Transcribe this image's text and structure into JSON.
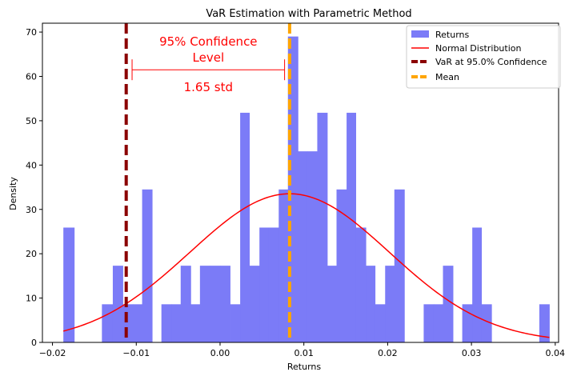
{
  "chart_data": {
    "type": "histogram",
    "title": "VaR Estimation with Parametric Method",
    "xlabel": "Returns",
    "ylabel": "Density",
    "xlim": [
      -0.0212,
      0.0404
    ],
    "ylim": [
      0,
      72
    ],
    "xticks": [
      -0.02,
      -0.01,
      0.0,
      0.01,
      0.02,
      0.03,
      0.04
    ],
    "xtick_labels": [
      "−0.02",
      "−0.01",
      "0.00",
      "0.01",
      "0.02",
      "0.03",
      "0.04"
    ],
    "yticks": [
      0,
      10,
      20,
      30,
      40,
      50,
      60,
      70
    ],
    "ytick_labels": [
      "0",
      "10",
      "20",
      "30",
      "40",
      "50",
      "60",
      "70"
    ],
    "histogram": {
      "name": "Returns",
      "color": "#7b7bf7",
      "bins": [
        [
          -0.0187,
          -0.0174,
          25.9
        ],
        [
          -0.0141,
          -0.0128,
          8.6
        ],
        [
          -0.0128,
          -0.0116,
          17.3
        ],
        [
          -0.0116,
          -0.0104,
          8.6
        ],
        [
          -0.0104,
          -0.0093,
          8.6
        ],
        [
          -0.0093,
          -0.0081,
          34.5
        ],
        [
          -0.007,
          -0.0058,
          8.6
        ],
        [
          -0.0058,
          -0.0047,
          8.6
        ],
        [
          -0.0047,
          -0.0035,
          17.3
        ],
        [
          -0.0035,
          -0.0024,
          8.6
        ],
        [
          -0.0024,
          -0.0012,
          17.3
        ],
        [
          -0.0012,
          0.0,
          17.3
        ],
        [
          0.0,
          0.0012,
          17.3
        ],
        [
          0.0012,
          0.0024,
          8.6
        ],
        [
          0.0024,
          0.0035,
          51.8
        ],
        [
          0.0035,
          0.0047,
          17.3
        ],
        [
          0.0047,
          0.0058,
          25.9
        ],
        [
          0.0058,
          0.007,
          25.9
        ],
        [
          0.007,
          0.0081,
          34.5
        ],
        [
          0.0081,
          0.0093,
          69.0
        ],
        [
          0.0093,
          0.0104,
          43.1
        ],
        [
          0.0104,
          0.0116,
          43.1
        ],
        [
          0.0116,
          0.0128,
          51.8
        ],
        [
          0.0128,
          0.0139,
          17.3
        ],
        [
          0.0139,
          0.0151,
          34.5
        ],
        [
          0.0151,
          0.0162,
          51.8
        ],
        [
          0.0162,
          0.0174,
          25.9
        ],
        [
          0.0174,
          0.0185,
          17.3
        ],
        [
          0.0185,
          0.0197,
          8.6
        ],
        [
          0.0197,
          0.0208,
          17.3
        ],
        [
          0.0208,
          0.022,
          34.5
        ],
        [
          0.0243,
          0.0255,
          8.6
        ],
        [
          0.0255,
          0.0266,
          8.6
        ],
        [
          0.0266,
          0.0278,
          17.3
        ],
        [
          0.0289,
          0.0301,
          8.6
        ],
        [
          0.0301,
          0.0312,
          25.9
        ],
        [
          0.0312,
          0.0324,
          8.6
        ],
        [
          0.0381,
          0.0393,
          8.6
        ]
      ]
    },
    "normal_distribution": {
      "name": "Normal Distribution",
      "color": "#ff0000",
      "mean": 0.0083,
      "std": 0.0119,
      "x_range": [
        -0.0187,
        0.0393
      ]
    },
    "var_line": {
      "name": "VaR at 95.0% Confidence",
      "x": -0.0112,
      "color": "#8b0000"
    },
    "mean_line": {
      "name": "Mean",
      "x": 0.0083,
      "color": "#ffa500"
    },
    "legend": [
      "Returns",
      "Normal Distribution",
      "VaR at 95.0% Confidence",
      "Mean"
    ],
    "legend_position": "top-right",
    "annotation": {
      "line1": "95% Confidence",
      "line2": "Level",
      "line3": "1.65 std",
      "color": "#ff0000",
      "span": [
        -0.0105,
        0.0077
      ],
      "at_y": 61.5
    }
  }
}
